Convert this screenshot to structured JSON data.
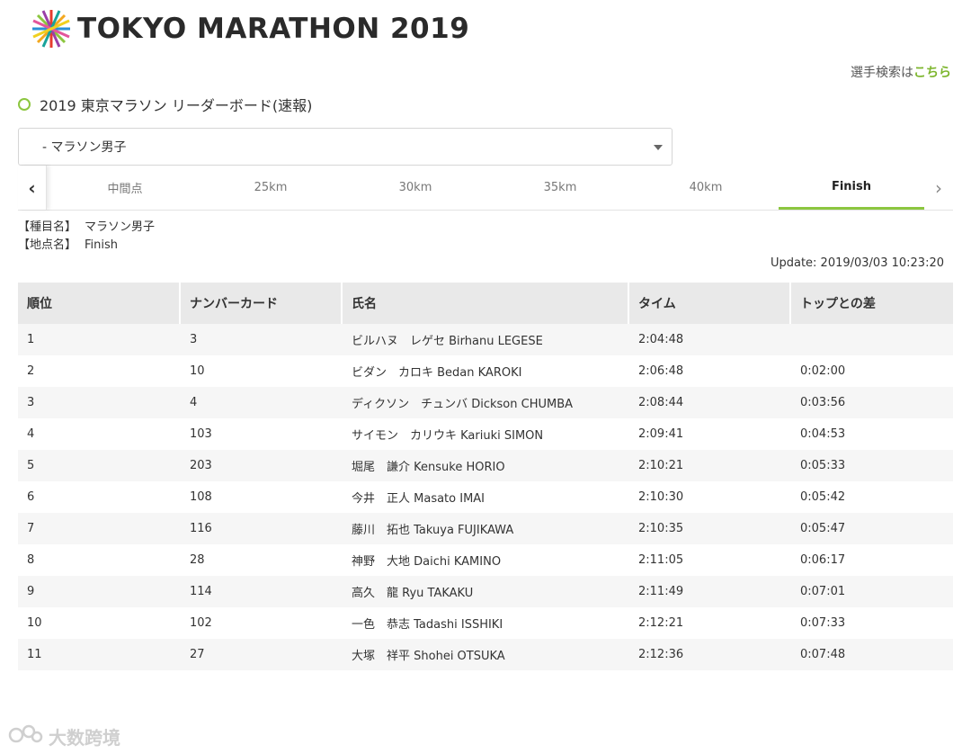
{
  "header": {
    "logo_text": "TOKYO MARATHON 2019",
    "search_prefix": "選手検索は",
    "search_link": "こちら"
  },
  "section": {
    "title": "2019 東京マラソン リーダーボード(速報)"
  },
  "category_select": {
    "value": "- マラソン男子"
  },
  "tabs": [
    {
      "label": "中間点",
      "active": false
    },
    {
      "label": "25km",
      "active": false
    },
    {
      "label": "30km",
      "active": false
    },
    {
      "label": "35km",
      "active": false
    },
    {
      "label": "40km",
      "active": false
    },
    {
      "label": "Finish",
      "active": true
    }
  ],
  "meta": {
    "event_key": "【種目名】",
    "event_value": "マラソン男子",
    "point_key": "【地点名】",
    "point_value": "Finish",
    "update": "Update: 2019/03/03 10:23:20"
  },
  "table": {
    "headers": [
      "順位",
      "ナンバーカード",
      "氏名",
      "タイム",
      "トップとの差"
    ],
    "rows": [
      [
        "1",
        "3",
        "ビルハヌ　レゲセ Birhanu LEGESE",
        "2:04:48",
        ""
      ],
      [
        "2",
        "10",
        "ビダン　カロキ Bedan KAROKI",
        "2:06:48",
        "0:02:00"
      ],
      [
        "3",
        "4",
        "ディクソン　チュンバ Dickson CHUMBA",
        "2:08:44",
        "0:03:56"
      ],
      [
        "4",
        "103",
        "サイモン　カリウキ Kariuki SIMON",
        "2:09:41",
        "0:04:53"
      ],
      [
        "5",
        "203",
        "堀尾　謙介 Kensuke HORIO",
        "2:10:21",
        "0:05:33"
      ],
      [
        "6",
        "108",
        "今井　正人 Masato IMAI",
        "2:10:30",
        "0:05:42"
      ],
      [
        "7",
        "116",
        "藤川　拓也 Takuya FUJIKAWA",
        "2:10:35",
        "0:05:47"
      ],
      [
        "8",
        "28",
        "神野　大地 Daichi KAMINO",
        "2:11:05",
        "0:06:17"
      ],
      [
        "9",
        "114",
        "高久　龍 Ryu TAKAKU",
        "2:11:49",
        "0:07:01"
      ],
      [
        "10",
        "102",
        "一色　恭志 Tadashi ISSHIKI",
        "2:12:21",
        "0:07:33"
      ],
      [
        "11",
        "27",
        "大塚　祥平 Shohei OTSUKA",
        "2:12:36",
        "0:07:48"
      ]
    ]
  },
  "watermark": {
    "text": "大数跨境"
  },
  "colors": {
    "accent": "#8cc63f",
    "link": "#7cb52c"
  }
}
